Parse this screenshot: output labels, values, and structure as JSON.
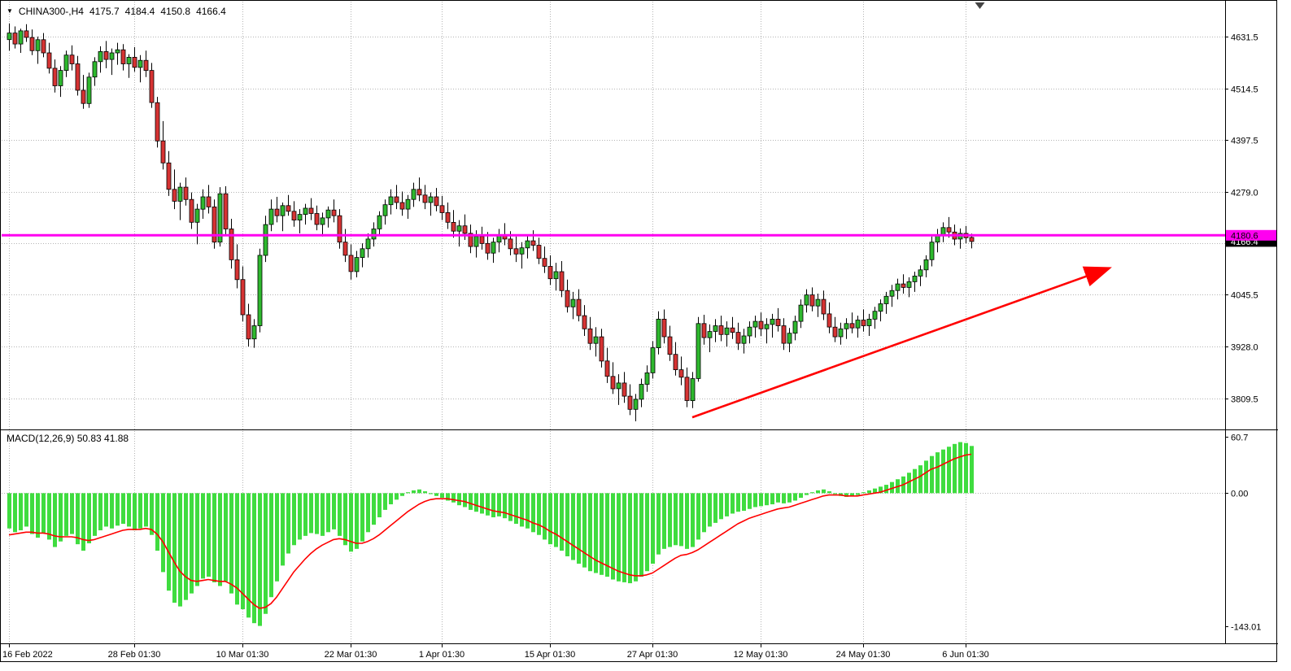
{
  "header": {
    "menu_icon": "▼",
    "symbol_period": "CHINA300-,H4",
    "open": "4175.7",
    "high": "4184.4",
    "low": "4150.8",
    "close": "4166.4"
  },
  "macd_header": "MACD(12,26,9) 50.83 41.88",
  "colors": {
    "up": "#2eb82e",
    "down": "#d63333",
    "wick": "#000000",
    "grid": "#b4b4b4",
    "hist": "#3fdc3f",
    "signal": "#ff0000",
    "hline": "#ff00f0",
    "arrow": "#ff0000",
    "axis_text": "#000000",
    "tag_text": "#000000",
    "bid_tag_bg": "#000000",
    "bid_tag_text": "#ffffff"
  },
  "chart_data": {
    "type": "candlestick",
    "title": "CHINA300-,H4",
    "price_axis": {
      "range": [
        3745,
        4680
      ],
      "ticks": [
        {
          "label": "4631.5",
          "value": 4631.5
        },
        {
          "label": "4514.5",
          "value": 4514.5
        },
        {
          "label": "4397.5",
          "value": 4397.5
        },
        {
          "label": "4279.0",
          "value": 4279.0
        },
        {
          "label": "",
          "value": 4162.0
        },
        {
          "label": "4045.5",
          "value": 4045.5
        },
        {
          "label": "3928.0",
          "value": 3928.0
        },
        {
          "label": "3809.5",
          "value": 3809.5
        }
      ]
    },
    "time_axis": {
      "ticks": [
        {
          "label": "16 Feb 2022",
          "index": 0
        },
        {
          "label": "28 Feb 01:30",
          "index": 22
        },
        {
          "label": "10 Mar 01:30",
          "index": 41
        },
        {
          "label": "22 Mar 01:30",
          "index": 60
        },
        {
          "label": "1 Apr 01:30",
          "index": 76
        },
        {
          "label": "15 Apr 01:30",
          "index": 95
        },
        {
          "label": "27 Apr 01:30",
          "index": 113
        },
        {
          "label": "12 May 01:30",
          "index": 132
        },
        {
          "label": "24 May 01:30",
          "index": 150
        },
        {
          "label": "6 Jun 01:30",
          "index": 168
        }
      ]
    },
    "horizontal_line": {
      "price": 4180.6,
      "label": "4180.6"
    },
    "bid_tag": {
      "price": 4166.4,
      "label": "4166.4"
    },
    "trend_arrow": {
      "from_index": 120,
      "from_price": 3767,
      "to_index": 193,
      "to_price": 4105
    },
    "shift_marker_index": 170.5,
    "candles": [
      [
        4625,
        4662,
        4600,
        4640
      ],
      [
        4640,
        4655,
        4605,
        4615
      ],
      [
        4615,
        4650,
        4595,
        4645
      ],
      [
        4645,
        4660,
        4620,
        4630
      ],
      [
        4630,
        4648,
        4590,
        4600
      ],
      [
        4600,
        4632,
        4570,
        4625
      ],
      [
        4625,
        4640,
        4585,
        4595
      ],
      [
        4595,
        4618,
        4548,
        4560
      ],
      [
        4560,
        4580,
        4505,
        4520
      ],
      [
        4520,
        4565,
        4495,
        4555
      ],
      [
        4555,
        4600,
        4540,
        4590
      ],
      [
        4590,
        4612,
        4555,
        4570
      ],
      [
        4570,
        4588,
        4498,
        4510
      ],
      [
        4510,
        4545,
        4468,
        4480
      ],
      [
        4480,
        4550,
        4470,
        4540
      ],
      [
        4540,
        4585,
        4520,
        4575
      ],
      [
        4575,
        4610,
        4550,
        4598
      ],
      [
        4598,
        4622,
        4560,
        4580
      ],
      [
        4580,
        4605,
        4545,
        4595
      ],
      [
        4595,
        4618,
        4568,
        4602
      ],
      [
        4602,
        4615,
        4555,
        4570
      ],
      [
        4570,
        4592,
        4538,
        4585
      ],
      [
        4585,
        4608,
        4552,
        4562
      ],
      [
        4562,
        4590,
        4528,
        4578
      ],
      [
        4578,
        4600,
        4540,
        4555
      ],
      [
        4555,
        4572,
        4470,
        4482
      ],
      [
        4482,
        4495,
        4380,
        4395
      ],
      [
        4395,
        4440,
        4330,
        4345
      ],
      [
        4345,
        4372,
        4270,
        4285
      ],
      [
        4285,
        4330,
        4240,
        4258
      ],
      [
        4258,
        4300,
        4215,
        4290
      ],
      [
        4290,
        4312,
        4248,
        4262
      ],
      [
        4262,
        4278,
        4195,
        4210
      ],
      [
        4210,
        4252,
        4160,
        4240
      ],
      [
        4240,
        4285,
        4218,
        4268
      ],
      [
        4268,
        4295,
        4230,
        4245
      ],
      [
        4245,
        4262,
        4150,
        4165
      ],
      [
        4165,
        4290,
        4155,
        4275
      ],
      [
        4275,
        4292,
        4180,
        4195
      ],
      [
        4195,
        4218,
        4105,
        4125
      ],
      [
        4125,
        4160,
        4060,
        4080
      ],
      [
        4080,
        4110,
        3985,
        4000
      ],
      [
        4000,
        4025,
        3928,
        3945
      ],
      [
        3945,
        3990,
        3925,
        3975
      ],
      [
        3975,
        4150,
        3960,
        4135
      ],
      [
        4135,
        4225,
        4120,
        4205
      ],
      [
        4205,
        4262,
        4190,
        4240
      ],
      [
        4240,
        4268,
        4210,
        4225
      ],
      [
        4225,
        4255,
        4190,
        4248
      ],
      [
        4248,
        4272,
        4225,
        4235
      ],
      [
        4235,
        4258,
        4200,
        4215
      ],
      [
        4215,
        4240,
        4185,
        4228
      ],
      [
        4228,
        4252,
        4205,
        4242
      ],
      [
        4242,
        4265,
        4215,
        4230
      ],
      [
        4230,
        4248,
        4192,
        4205
      ],
      [
        4205,
        4232,
        4178,
        4220
      ],
      [
        4220,
        4246,
        4198,
        4238
      ],
      [
        4238,
        4262,
        4210,
        4225
      ],
      [
        4225,
        4240,
        4150,
        4165
      ],
      [
        4165,
        4195,
        4120,
        4135
      ],
      [
        4135,
        4160,
        4080,
        4098
      ],
      [
        4098,
        4145,
        4085,
        4130
      ],
      [
        4130,
        4162,
        4108,
        4150
      ],
      [
        4150,
        4185,
        4130,
        4172
      ],
      [
        4172,
        4210,
        4155,
        4195
      ],
      [
        4195,
        4235,
        4180,
        4225
      ],
      [
        4225,
        4262,
        4205,
        4250
      ],
      [
        4250,
        4285,
        4228,
        4268
      ],
      [
        4268,
        4295,
        4240,
        4255
      ],
      [
        4255,
        4280,
        4225,
        4240
      ],
      [
        4240,
        4272,
        4218,
        4262
      ],
      [
        4262,
        4300,
        4245,
        4285
      ],
      [
        4285,
        4312,
        4258,
        4272
      ],
      [
        4272,
        4295,
        4240,
        4255
      ],
      [
        4255,
        4278,
        4225,
        4268
      ],
      [
        4268,
        4288,
        4235,
        4248
      ],
      [
        4248,
        4270,
        4215,
        4232
      ],
      [
        4232,
        4255,
        4195,
        4210
      ],
      [
        4210,
        4238,
        4175,
        4190
      ],
      [
        4190,
        4215,
        4155,
        4202
      ],
      [
        4202,
        4228,
        4170,
        4185
      ],
      [
        4185,
        4205,
        4140,
        4155
      ],
      [
        4155,
        4192,
        4130,
        4178
      ],
      [
        4178,
        4200,
        4148,
        4162
      ],
      [
        4162,
        4188,
        4125,
        4140
      ],
      [
        4140,
        4175,
        4118,
        4165
      ],
      [
        4165,
        4195,
        4142,
        4180
      ],
      [
        4180,
        4208,
        4158,
        4172
      ],
      [
        4172,
        4190,
        4135,
        4150
      ],
      [
        4150,
        4178,
        4120,
        4138
      ],
      [
        4138,
        4165,
        4105,
        4152
      ],
      [
        4152,
        4180,
        4128,
        4168
      ],
      [
        4168,
        4192,
        4145,
        4158
      ],
      [
        4158,
        4175,
        4115,
        4128
      ],
      [
        4128,
        4155,
        4095,
        4110
      ],
      [
        4110,
        4135,
        4068,
        4082
      ],
      [
        4082,
        4118,
        4055,
        4098
      ],
      [
        4098,
        4122,
        4040,
        4055
      ],
      [
        4055,
        4080,
        4005,
        4018
      ],
      [
        4018,
        4052,
        3990,
        4035
      ],
      [
        4035,
        4058,
        3985,
        3998
      ],
      [
        3998,
        4022,
        3952,
        3968
      ],
      [
        3968,
        3995,
        3920,
        3935
      ],
      [
        3935,
        3972,
        3905,
        3950
      ],
      [
        3950,
        3968,
        3880,
        3895
      ],
      [
        3895,
        3925,
        3845,
        3860
      ],
      [
        3860,
        3892,
        3820,
        3832
      ],
      [
        3832,
        3865,
        3795,
        3845
      ],
      [
        3845,
        3870,
        3800,
        3815
      ],
      [
        3815,
        3842,
        3772,
        3785
      ],
      [
        3785,
        3820,
        3758,
        3808
      ],
      [
        3808,
        3855,
        3790,
        3842
      ],
      [
        3842,
        3885,
        3825,
        3868
      ],
      [
        3868,
        3940,
        3855,
        3925
      ],
      [
        3925,
        4008,
        3910,
        3990
      ],
      [
        3990,
        4012,
        3935,
        3950
      ],
      [
        3950,
        3975,
        3895,
        3910
      ],
      [
        3910,
        3938,
        3862,
        3875
      ],
      [
        3875,
        3905,
        3840,
        3858
      ],
      [
        3858,
        3880,
        3790,
        3805
      ],
      [
        3805,
        3870,
        3788,
        3855
      ],
      [
        3855,
        3995,
        3848,
        3980
      ],
      [
        3980,
        4000,
        3932,
        3948
      ],
      [
        3948,
        3978,
        3915,
        3962
      ],
      [
        3962,
        3990,
        3938,
        3975
      ],
      [
        3975,
        3998,
        3940,
        3955
      ],
      [
        3955,
        3985,
        3928,
        3970
      ],
      [
        3970,
        3995,
        3945,
        3960
      ],
      [
        3960,
        3982,
        3920,
        3935
      ],
      [
        3935,
        3968,
        3912,
        3952
      ],
      [
        3952,
        3985,
        3935,
        3972
      ],
      [
        3972,
        3998,
        3948,
        3985
      ],
      [
        3985,
        4005,
        3952,
        3968
      ],
      [
        3968,
        3992,
        3935,
        3978
      ],
      [
        3978,
        4002,
        3948,
        3990
      ],
      [
        3990,
        4015,
        3962,
        3975
      ],
      [
        3975,
        3992,
        3920,
        3935
      ],
      [
        3935,
        3970,
        3915,
        3958
      ],
      [
        3958,
        3998,
        3942,
        3985
      ],
      [
        3985,
        4035,
        3970,
        4022
      ],
      [
        4022,
        4058,
        4005,
        4045
      ],
      [
        4045,
        4062,
        4008,
        4020
      ],
      [
        4020,
        4048,
        3995,
        4035
      ],
      [
        4035,
        4055,
        3988,
        4002
      ],
      [
        4002,
        4028,
        3958,
        3972
      ],
      [
        3972,
        3995,
        3938,
        3950
      ],
      [
        3950,
        3982,
        3932,
        3968
      ],
      [
        3968,
        3992,
        3945,
        3980
      ],
      [
        3980,
        4005,
        3958,
        3970
      ],
      [
        3970,
        3998,
        3948,
        3988
      ],
      [
        3988,
        4012,
        3962,
        3975
      ],
      [
        3975,
        4002,
        3952,
        3990
      ],
      [
        3990,
        4018,
        3968,
        4008
      ],
      [
        4008,
        4035,
        3985,
        4025
      ],
      [
        4025,
        4052,
        4002,
        4042
      ],
      [
        4042,
        4068,
        4018,
        4055
      ],
      [
        4055,
        4082,
        4035,
        4070
      ],
      [
        4070,
        4092,
        4048,
        4062
      ],
      [
        4062,
        4085,
        4040,
        4075
      ],
      [
        4075,
        4098,
        4052,
        4088
      ],
      [
        4088,
        4112,
        4065,
        4102
      ],
      [
        4102,
        4135,
        4085,
        4125
      ],
      [
        4125,
        4178,
        4110,
        4165
      ],
      [
        4165,
        4195,
        4142,
        4182
      ],
      [
        4182,
        4210,
        4165,
        4198
      ],
      [
        4198,
        4222,
        4175,
        4188
      ],
      [
        4188,
        4205,
        4158,
        4172
      ],
      [
        4172,
        4196,
        4150,
        4185
      ],
      [
        4185,
        4202,
        4162,
        4175
      ],
      [
        4175.7,
        4184.4,
        4150.8,
        4166.4
      ]
    ],
    "macd": {
      "label": "MACD(12,26,9)",
      "macd_value": 50.83,
      "signal_value": 41.88,
      "range": [
        -160,
        66
      ],
      "ticks": [
        {
          "label": "60.7",
          "value": 60.7
        },
        {
          "label": "0.00",
          "value": 0
        },
        {
          "label": "-143.01",
          "value": -143.01
        }
      ],
      "histogram": [
        -38,
        -42,
        -40,
        -36,
        -44,
        -48,
        -43,
        -50,
        -58,
        -52,
        -46,
        -44,
        -55,
        -62,
        -54,
        -46,
        -40,
        -36,
        -38,
        -35,
        -33,
        -36,
        -40,
        -38,
        -36,
        -45,
        -62,
        -85,
        -105,
        -118,
        -122,
        -115,
        -108,
        -100,
        -92,
        -90,
        -96,
        -100,
        -95,
        -108,
        -120,
        -125,
        -134,
        -140,
        -143,
        -130,
        -112,
        -95,
        -78,
        -65,
        -56,
        -50,
        -46,
        -43,
        -44,
        -46,
        -42,
        -39,
        -46,
        -56,
        -63,
        -60,
        -52,
        -42,
        -34,
        -26,
        -18,
        -12,
        -7,
        -3,
        1,
        3,
        4,
        2,
        -1,
        -3,
        -5,
        -8,
        -10,
        -13,
        -15,
        -18,
        -20,
        -22,
        -24,
        -26,
        -25,
        -27,
        -30,
        -33,
        -36,
        -38,
        -42,
        -45,
        -50,
        -55,
        -58,
        -62,
        -68,
        -72,
        -76,
        -80,
        -84,
        -86,
        -88,
        -90,
        -93,
        -95,
        -96,
        -97,
        -95,
        -90,
        -84,
        -76,
        -66,
        -60,
        -58,
        -56,
        -57,
        -60,
        -58,
        -50,
        -42,
        -36,
        -32,
        -28,
        -25,
        -22,
        -20,
        -19,
        -17,
        -15,
        -14,
        -13,
        -12,
        -10,
        -11,
        -10,
        -8,
        -5,
        -2,
        1,
        3,
        4,
        2,
        -1,
        -3,
        -4,
        -3,
        -2,
        1,
        3,
        5,
        7,
        9,
        12,
        15,
        18,
        22,
        26,
        30,
        35,
        40,
        44,
        47,
        50,
        53,
        55,
        54,
        50.83
      ],
      "signal": [
        -45,
        -44,
        -43,
        -42,
        -42,
        -43,
        -43,
        -44,
        -46,
        -47,
        -47,
        -47,
        -48,
        -50,
        -51,
        -50,
        -48,
        -46,
        -44,
        -42,
        -40,
        -39,
        -39,
        -39,
        -38,
        -39,
        -44,
        -52,
        -63,
        -74,
        -84,
        -90,
        -94,
        -95,
        -94,
        -93,
        -94,
        -95,
        -95,
        -98,
        -102,
        -108,
        -114,
        -120,
        -124,
        -123,
        -119,
        -112,
        -103,
        -94,
        -85,
        -78,
        -71,
        -65,
        -60,
        -56,
        -53,
        -50,
        -49,
        -50,
        -52,
        -54,
        -54,
        -52,
        -49,
        -45,
        -40,
        -35,
        -30,
        -25,
        -20,
        -16,
        -12,
        -9,
        -7,
        -6,
        -6,
        -6,
        -7,
        -8,
        -9,
        -11,
        -13,
        -15,
        -17,
        -19,
        -20,
        -21,
        -23,
        -25,
        -27,
        -29,
        -32,
        -34,
        -37,
        -41,
        -44,
        -48,
        -52,
        -56,
        -60,
        -64,
        -68,
        -72,
        -75,
        -78,
        -81,
        -84,
        -86,
        -88,
        -89,
        -89,
        -88,
        -86,
        -82,
        -78,
        -74,
        -70,
        -67,
        -66,
        -64,
        -61,
        -57,
        -53,
        -49,
        -45,
        -41,
        -37,
        -33,
        -30,
        -27,
        -25,
        -23,
        -21,
        -19,
        -17,
        -16,
        -15,
        -13,
        -11,
        -9,
        -7,
        -5,
        -3,
        -2,
        -2,
        -2,
        -3,
        -3,
        -3,
        -2,
        -1,
        0,
        1,
        3,
        5,
        7,
        9,
        12,
        15,
        18,
        22,
        26,
        28,
        31,
        34,
        37,
        39,
        41,
        41.88
      ]
    }
  }
}
